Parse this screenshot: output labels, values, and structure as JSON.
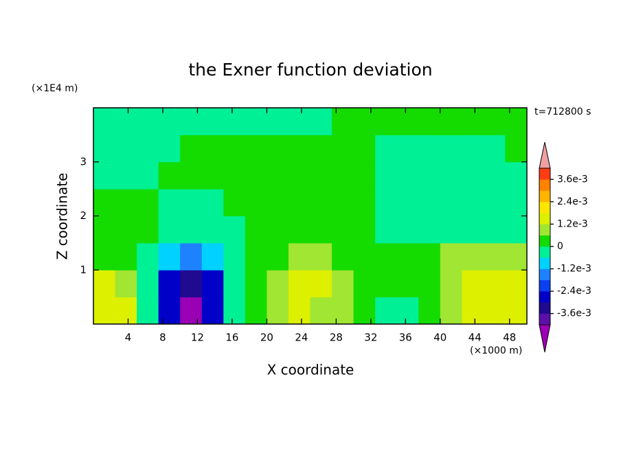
{
  "chart_data": {
    "type": "contour",
    "title": "the Exner function deviation",
    "xlabel": "X coordinate",
    "ylabel": "Z coordinate",
    "xunit": "(×1000 m)",
    "yunit": "(×1E4 m)",
    "annotation": "t=712800 s",
    "xlim": [
      0,
      50
    ],
    "ylim": [
      0,
      4
    ],
    "xticks": [
      4,
      8,
      12,
      16,
      20,
      24,
      28,
      32,
      36,
      40,
      44,
      48
    ],
    "yticks": [
      1,
      2,
      3
    ],
    "x": [
      1.25,
      3.75,
      6.25,
      8.75,
      11.25,
      13.75,
      16.25,
      18.75,
      21.25,
      23.75,
      26.25,
      28.75,
      31.25,
      33.75,
      36.25,
      38.75,
      41.25,
      43.75,
      46.25,
      48.75
    ],
    "y": [
      0.25,
      0.75,
      1.25,
      1.75,
      2.25,
      2.75,
      3.25,
      3.75
    ],
    "z": [
      [
        0.0016,
        0.0012,
        -0.0004,
        -0.003,
        -0.0045,
        -0.003,
        -0.0004,
        0.0005,
        0.0009,
        0.0012,
        0.0011,
        0.0008,
        0.0003,
        -0.0003,
        -0.0003,
        0.0003,
        0.0009,
        0.0012,
        0.0013,
        0.0015
      ],
      [
        0.0012,
        0.0009,
        -0.0003,
        -0.0025,
        -0.0035,
        -0.0025,
        -0.0003,
        0.0003,
        0.0009,
        0.0013,
        0.0013,
        0.0009,
        0.0004,
        0.0002,
        0.0003,
        0.0004,
        0.0009,
        0.0012,
        0.0013,
        0.0012
      ],
      [
        0.0003,
        0.0003,
        -0.0005,
        -0.001,
        -0.0015,
        -0.001,
        -0.0003,
        0.0003,
        0.0003,
        0.0007,
        0.0007,
        0.0005,
        0.0003,
        0.0003,
        0.0003,
        0.0003,
        0.0008,
        0.0008,
        0.0008,
        0.0008
      ],
      [
        0.0003,
        0.0003,
        0.0003,
        -0.0003,
        -0.0004,
        -0.0003,
        -0.0002,
        0.0003,
        0.0003,
        0.0003,
        0.0003,
        0.0003,
        0.0003,
        -0.0002,
        -0.0002,
        -0.0002,
        -0.0002,
        -0.0002,
        -0.0002,
        -0.0002
      ],
      [
        0.0003,
        0.0003,
        0.0003,
        -0.0001,
        -0.0001,
        -0.0001,
        0.0003,
        0.0003,
        0.0003,
        0.0003,
        0.0003,
        0.0003,
        0.0003,
        -0.0002,
        -0.0002,
        -0.0002,
        -0.0002,
        -0.0002,
        -0.0002,
        -0.0002
      ],
      [
        -0.0002,
        -0.0002,
        -0.0002,
        0.0003,
        0.0003,
        0.0003,
        0.0003,
        0.0003,
        0.0003,
        0.0003,
        0.0003,
        0.0003,
        0.0003,
        -0.0002,
        -0.0002,
        -0.0002,
        -0.0002,
        -0.0002,
        -0.0002,
        -0.0002
      ],
      [
        -0.0002,
        -0.0002,
        -0.0002,
        -0.0002,
        0.0003,
        0.0003,
        0.0003,
        0.0003,
        0.0003,
        0.0003,
        0.0003,
        0.0003,
        0.0003,
        -0.0002,
        -0.0002,
        -0.0002,
        -0.0002,
        -0.0002,
        -0.0002,
        0.0003
      ],
      [
        -0.0003,
        -0.0003,
        -0.0003,
        -0.0003,
        -0.0003,
        -0.0003,
        -0.0003,
        -0.0003,
        -0.0003,
        -0.0003,
        -0.0003,
        0.0003,
        0.0003,
        0.0003,
        0.0003,
        0.0003,
        0.0003,
        0.0003,
        0.0003,
        0.0003
      ]
    ],
    "levels": [
      -0.0042,
      -0.0036,
      -0.003,
      -0.0024,
      -0.0018,
      -0.0012,
      -0.0006,
      0,
      0.0006,
      0.0012,
      0.0018,
      0.0024,
      0.003,
      0.0036,
      0.0042
    ],
    "colors": [
      "#5c10a8",
      "#200a90",
      "#0000c8",
      "#0a40f0",
      "#1e82ff",
      "#00d2ff",
      "#00f096",
      "#14dc00",
      "#a0e632",
      "#dcf000",
      "#ffe600",
      "#ffb400",
      "#ff8200",
      "#ff3c14"
    ],
    "under_color": "#9a00b4",
    "over_color": "#f0a0a0",
    "colorbar_ticks": [
      {
        "value": 0.0036,
        "label": "3.6e-3"
      },
      {
        "value": 0.0024,
        "label": "2.4e-3"
      },
      {
        "value": 0.0012,
        "label": "1.2e-3"
      },
      0,
      {
        "value": -0.0012,
        "label": "-1.2e-3"
      },
      {
        "value": -0.0024,
        "label": "-2.4e-3"
      },
      {
        "value": -0.0036,
        "label": "-3.6e-3"
      }
    ]
  }
}
